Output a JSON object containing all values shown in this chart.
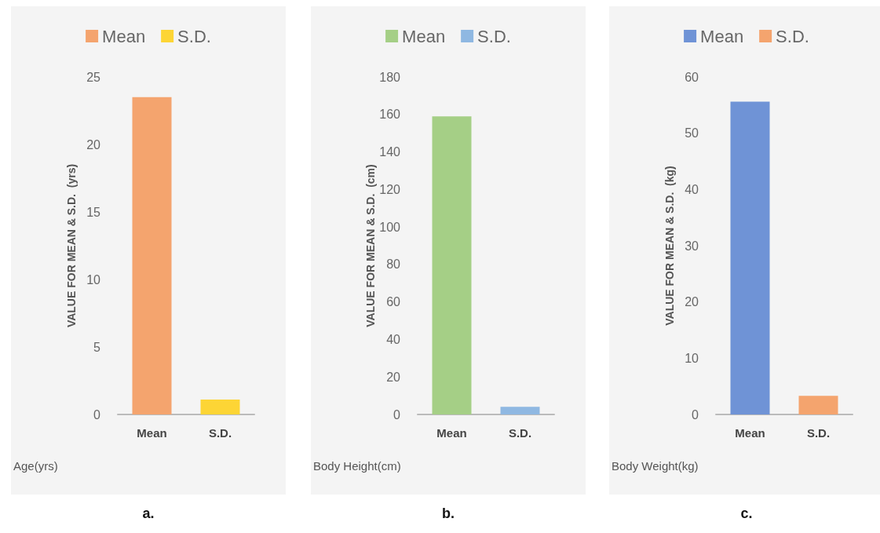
{
  "chart_data": [
    {
      "type": "bar",
      "categories": [
        "Mean",
        "S.D."
      ],
      "xlabel": "Age(yrs)",
      "ylabel": "VALUE FOR MEAN & S.D.  (yrs)",
      "annotations": [
        "a."
      ],
      "series": [
        {
          "name": "Mean",
          "color": "#f4a46e",
          "values": [
            23.5,
            null
          ]
        },
        {
          "name": "S.D.",
          "color": "#fdd535",
          "values": [
            null,
            1.1
          ]
        }
      ],
      "ylim": [
        0,
        25
      ],
      "yticks": [
        0,
        5,
        10,
        15,
        20,
        25
      ],
      "grid": false,
      "legend": "top"
    },
    {
      "type": "bar",
      "categories": [
        "Mean",
        "S.D."
      ],
      "xlabel": "Body Height(cm)",
      "ylabel": "VALUE FOR MEAN & S.D.  (cm)",
      "annotations": [
        "b."
      ],
      "series": [
        {
          "name": "Mean",
          "color": "#a5cf86",
          "values": [
            159,
            null
          ]
        },
        {
          "name": "S.D.",
          "color": "#8fb8e2",
          "values": [
            null,
            4.1
          ]
        }
      ],
      "ylim": [
        0,
        180
      ],
      "yticks": [
        0,
        20,
        40,
        60,
        80,
        100,
        120,
        140,
        160,
        180
      ],
      "grid": false,
      "legend": "top"
    },
    {
      "type": "bar",
      "categories": [
        "Mean",
        "S.D."
      ],
      "xlabel": "Body Weight(kg)",
      "ylabel": "VALUE FOR MEAN & S.D.  (kg)",
      "annotations": [
        "c."
      ],
      "series": [
        {
          "name": "Mean",
          "color": "#6f93d6",
          "values": [
            55.6,
            null
          ]
        },
        {
          "name": "S.D.",
          "color": "#f4a46e",
          "values": [
            null,
            3.3
          ]
        }
      ],
      "ylim": [
        0,
        60
      ],
      "yticks": [
        0,
        10,
        20,
        30,
        40,
        50,
        60
      ],
      "grid": false,
      "legend": "top"
    }
  ]
}
